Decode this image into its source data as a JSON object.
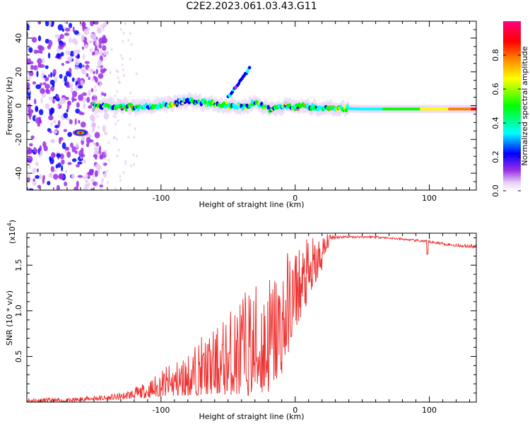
{
  "title": "C2E2.2023.061.03.43.G11",
  "chart_data": [
    {
      "type": "heatmap",
      "xlabel": "Height of straight line (km)",
      "ylabel": "Frequency (Hz)",
      "xlim": [
        -200,
        135
      ],
      "ylim": [
        -50,
        50
      ],
      "x_ticks": [
        -100,
        0,
        100
      ],
      "x_tick_labels": [
        "-100",
        "0",
        "100"
      ],
      "y_ticks": [
        -40,
        -20,
        0,
        20,
        40
      ],
      "y_tick_labels": [
        "-40",
        "-20",
        "0",
        "20",
        "40"
      ],
      "colorbar": {
        "label": "Normalized spectral amplitude",
        "range": [
          0,
          1
        ],
        "ticks": [
          0.0,
          0.2,
          0.4,
          0.6,
          0.8
        ],
        "tick_labels": [
          "0.0",
          "0.2",
          "0.4",
          "0.6",
          "0.8"
        ],
        "colors": [
          "#ffffff",
          "#d9b8f0",
          "#8a2be2",
          "#0000ff",
          "#00ffff",
          "#00ff00",
          "#ffff00",
          "#ff8000",
          "#ff0000",
          "#ff0080"
        ]
      },
      "features": {
        "main_band_freq_hz": [
          [
            -150,
            0
          ],
          [
            -120,
            -1
          ],
          [
            -100,
            0
          ],
          [
            -80,
            3
          ],
          [
            -60,
            1
          ],
          [
            -40,
            -1
          ],
          [
            -30,
            2
          ],
          [
            -20,
            -2
          ],
          [
            -5,
            0
          ],
          [
            10,
            -1
          ],
          [
            50,
            -2
          ],
          [
            135,
            -2
          ]
        ],
        "secondary_branch": [
          [
            -50,
            5
          ],
          [
            -43,
            12
          ],
          [
            -38,
            18
          ],
          [
            -34,
            22
          ]
        ],
        "strong_spot": {
          "x": -160,
          "y": -16,
          "amplitude": 0.95
        }
      }
    },
    {
      "type": "line",
      "xlabel": "Height of straight line (km)",
      "ylabel": "SNR (10 * v/v)",
      "y_multiplier": "(x10^4)",
      "xlim": [
        -200,
        135
      ],
      "ylim": [
        0,
        1.85
      ],
      "x_ticks": [
        -100,
        0,
        100
      ],
      "x_tick_labels": [
        "-100",
        "0",
        "100"
      ],
      "y_ticks": [
        0.5,
        1.0,
        1.5
      ],
      "y_tick_labels": [
        "0.5",
        "1.0",
        "1.5"
      ],
      "color": "#ee3333",
      "envelope": {
        "x": [
          -200,
          -170,
          -150,
          -140,
          -130,
          -120,
          -110,
          -100,
          -90,
          -80,
          -70,
          -60,
          -50,
          -40,
          -30,
          -20,
          -10,
          0,
          10,
          20,
          25,
          30,
          40,
          60,
          80,
          100,
          120,
          135
        ],
        "low": [
          0.0,
          0.0,
          0.02,
          0.02,
          0.03,
          0.04,
          0.05,
          0.06,
          0.06,
          0.07,
          0.08,
          0.08,
          0.08,
          0.07,
          0.06,
          0.1,
          0.3,
          0.8,
          1.1,
          1.45,
          1.72,
          1.76,
          1.78,
          1.78,
          1.76,
          1.72,
          1.68,
          1.65
        ],
        "high": [
          0.05,
          0.04,
          0.08,
          0.08,
          0.1,
          0.16,
          0.22,
          0.36,
          0.45,
          0.55,
          0.72,
          0.8,
          1.0,
          1.22,
          1.35,
          1.45,
          1.6,
          1.75,
          1.8,
          1.85,
          1.85,
          1.84,
          1.83,
          1.83,
          1.8,
          1.78,
          1.74,
          1.74
        ]
      }
    }
  ]
}
